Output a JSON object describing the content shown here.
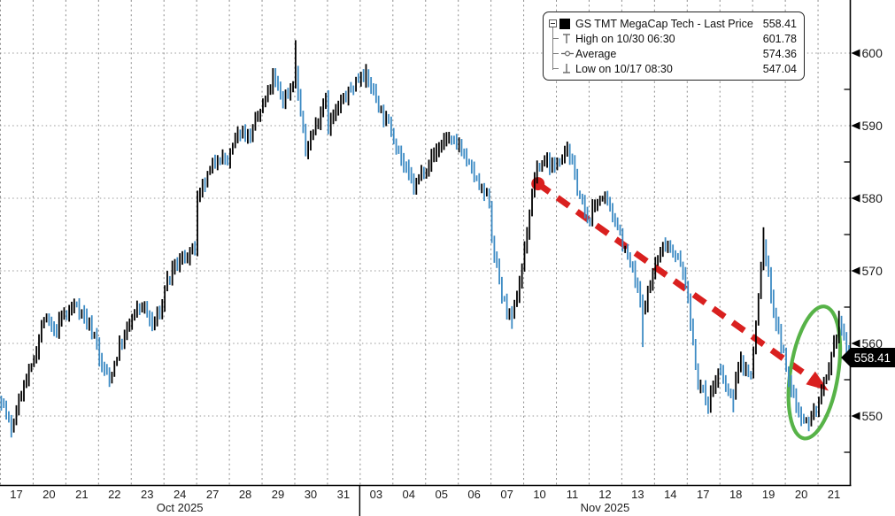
{
  "legend": {
    "rows": [
      {
        "icon": "series-black-square",
        "label": "GS TMT MegaCap Tech - Last Price",
        "value": "558.41"
      },
      {
        "icon": "high-marker",
        "label": "High on 10/30 06:30",
        "value": "601.78"
      },
      {
        "icon": "average-marker",
        "label": "Average",
        "value": "574.36"
      },
      {
        "icon": "low-marker",
        "label": "Low on 10/17 08:30",
        "value": "547.04"
      }
    ]
  },
  "chart_data": {
    "type": "ohlc",
    "series_name": "GS TMT MegaCap Tech - Last Price",
    "last_price": "558.41",
    "high": {
      "value": 601.78,
      "time": "10/30 06:30"
    },
    "low": {
      "value": 547.04,
      "time": "10/17 08:30"
    },
    "average": 574.36,
    "ylim": [
      540,
      608
    ],
    "y_ticks": [
      600,
      590,
      580,
      570,
      560,
      550
    ],
    "y_minor_ticks": [
      595,
      585,
      575,
      565,
      555,
      545
    ],
    "bars_per_day": 13,
    "months": [
      {
        "label": "Oct 2025",
        "days": 11
      },
      {
        "label": "Nov 2025",
        "days": 15
      }
    ],
    "days": [
      {
        "label": "17",
        "path": [
          552.5,
          548.0,
          553.5,
          556.5
        ],
        "low": 547.04
      },
      {
        "label": "20",
        "path": [
          558.0,
          563.5,
          561.5,
          564.0
        ]
      },
      {
        "label": "21",
        "path": [
          564.0,
          565.5,
          563.0,
          560.5
        ]
      },
      {
        "label": "22",
        "path": [
          557.5,
          555.0,
          559.5,
          562.5
        ],
        "low": 554.0
      },
      {
        "label": "23",
        "path": [
          563.5,
          565.5,
          562.5,
          565.0
        ]
      },
      {
        "label": "24",
        "path": [
          568.0,
          570.5,
          572.0,
          573.0
        ]
      },
      {
        "label": "27",
        "path": [
          579.5,
          583.0,
          586.0,
          585.0
        ]
      },
      {
        "label": "28",
        "path": [
          586.0,
          589.5,
          588.5,
          592.0
        ]
      },
      {
        "label": "29",
        "path": [
          592.5,
          596.5,
          593.5,
          596.0
        ]
      },
      {
        "label": "30",
        "path": [
          597.0,
          586.5,
          590.0,
          594.5
        ],
        "high": 601.78
      },
      {
        "label": "31",
        "path": [
          590.0,
          592.5,
          594.5,
          596.5
        ]
      },
      {
        "label": "03",
        "path": [
          597.5,
          595.5,
          592.0,
          589.5
        ],
        "high": 598.5
      },
      {
        "label": "04",
        "path": [
          588.5,
          584.5,
          581.5,
          584.0
        ],
        "low": 580.5
      },
      {
        "label": "05",
        "path": [
          584.5,
          586.5,
          588.5,
          587.0
        ]
      },
      {
        "label": "06",
        "path": [
          587.5,
          584.5,
          581.5,
          579.5
        ]
      },
      {
        "label": "07",
        "path": [
          574.5,
          566.5,
          563.0,
          570.5
        ],
        "low": 562.0
      },
      {
        "label": "10",
        "path": [
          573.0,
          583.0,
          585.5,
          584.0
        ]
      },
      {
        "label": "11",
        "path": [
          585.5,
          587.0,
          581.5,
          576.5
        ]
      },
      {
        "label": "12",
        "path": [
          577.5,
          580.5,
          578.5,
          575.5
        ]
      },
      {
        "label": "13",
        "path": [
          573.5,
          570.0,
          564.5,
          569.5
        ],
        "low": 559.5
      },
      {
        "label": "14",
        "path": [
          571.0,
          574.0,
          572.5,
          568.5
        ]
      },
      {
        "label": "17",
        "path": [
          565.5,
          554.5,
          552.0,
          556.0
        ],
        "low": 551.0
      },
      {
        "label": "18",
        "path": [
          555.5,
          552.5,
          557.5,
          555.5
        ],
        "low": 550.5
      },
      {
        "label": "19",
        "path": [
          559.0,
          574.0,
          564.5,
          558.5
        ],
        "high": 576.0
      },
      {
        "label": "20",
        "path": [
          556.0,
          551.5,
          549.0,
          551.0
        ],
        "low": 547.9
      },
      {
        "label": "21",
        "path": [
          552.0,
          556.0,
          563.0,
          558.41
        ],
        "high": 564.5
      }
    ],
    "annotations": {
      "trend_arrow": {
        "from": {
          "day": 16.45,
          "price": 582.0
        },
        "to": {
          "day": 25.05,
          "price": 554.4
        }
      },
      "highlight_ellipse": {
        "day": 24.9,
        "price": 556.0,
        "rx_days": 0.73,
        "ry_price": 9.2,
        "rotation_deg": 9
      }
    },
    "colors": {
      "bar_up": "#000000",
      "bar_down": "#3d8bc4",
      "trend_arrow": "#d9201f",
      "ellipse": "#57b348",
      "grid": "#999999",
      "axis": "#000000",
      "tag_bg": "#000000",
      "tag_text": "#ffffff"
    }
  }
}
